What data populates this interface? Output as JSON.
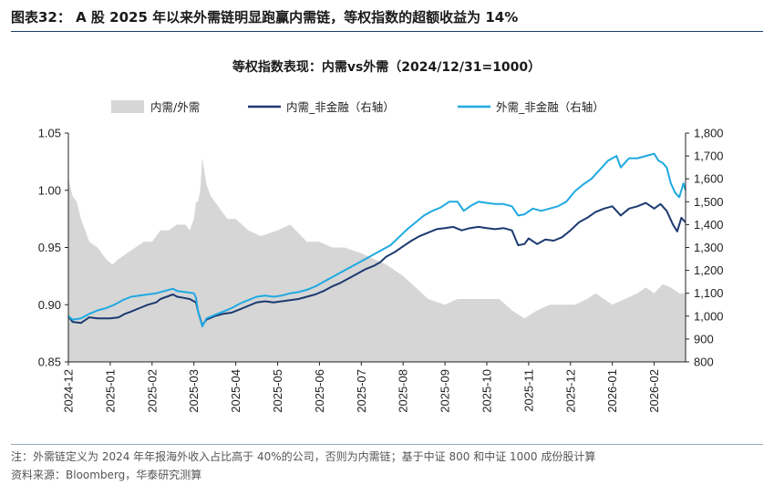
{
  "figure": {
    "title": "图表32： A 股 2025 年以来外需链明显跑赢内需链，等权指数的超额收益为 14%",
    "note": "注：外需链定义为 2024 年年报海外收入占比高于 40%的公司，否则为内需链；基于中证 800 和中证 1000 成份股计算",
    "source": "资料来源：Bloomberg，华泰研究测算"
  },
  "colors": {
    "area": "#d6d6d6",
    "domestic": "#1c3a70",
    "foreign": "#1fa9e1",
    "axis": "#222222"
  },
  "chart_data": {
    "type": "line",
    "title": "等权指数表现：内需vs外需（2024/12/31=1000）",
    "xlabel": "",
    "ylabel": "",
    "x_ticks": [
      "2024-12",
      "2025-01",
      "2025-02",
      "2025-03",
      "2025-04",
      "2025-05",
      "2025-06",
      "2025-07",
      "2025-08",
      "2025-09",
      "2025-10",
      "2025-11",
      "2025-12",
      "2026-01",
      "2026-02"
    ],
    "x_range": [
      0,
      14.75
    ],
    "y_left": {
      "ticks": [
        "0.85",
        "0.90",
        "0.95",
        "1.00",
        "1.05"
      ],
      "range": [
        0.85,
        1.05
      ]
    },
    "y_right": {
      "ticks": [
        "800",
        "900",
        "1,000",
        "1,100",
        "1,200",
        "1,300",
        "1,400",
        "1,500",
        "1,600",
        "1,700",
        "1,800"
      ],
      "range": [
        800,
        1800
      ]
    },
    "legend": [
      "内需/外需",
      "内需_非金融（右轴）",
      "外需_非金融（右轴）"
    ],
    "series": [
      {
        "name": "内需/外需",
        "kind": "area",
        "axis": "left",
        "points": [
          [
            0,
            1.01
          ],
          [
            0.1,
            0.995
          ],
          [
            0.2,
            0.99
          ],
          [
            0.3,
            0.975
          ],
          [
            0.5,
            0.955
          ],
          [
            0.7,
            0.95
          ],
          [
            0.9,
            0.94
          ],
          [
            1.05,
            0.935
          ],
          [
            1.2,
            0.94
          ],
          [
            1.4,
            0.945
          ],
          [
            1.6,
            0.95
          ],
          [
            1.8,
            0.955
          ],
          [
            2.0,
            0.955
          ],
          [
            2.2,
            0.965
          ],
          [
            2.4,
            0.965
          ],
          [
            2.6,
            0.97
          ],
          [
            2.8,
            0.97
          ],
          [
            2.9,
            0.965
          ],
          [
            3.0,
            0.975
          ],
          [
            3.05,
            0.99
          ],
          [
            3.1,
            0.99
          ],
          [
            3.15,
            1.0
          ],
          [
            3.2,
            1.028
          ],
          [
            3.3,
            1.005
          ],
          [
            3.4,
            0.995
          ],
          [
            3.6,
            0.985
          ],
          [
            3.8,
            0.975
          ],
          [
            4.0,
            0.975
          ],
          [
            4.3,
            0.965
          ],
          [
            4.6,
            0.96
          ],
          [
            5.0,
            0.965
          ],
          [
            5.3,
            0.97
          ],
          [
            5.7,
            0.955
          ],
          [
            6.0,
            0.955
          ],
          [
            6.3,
            0.95
          ],
          [
            6.6,
            0.95
          ],
          [
            7.0,
            0.945
          ],
          [
            7.3,
            0.94
          ],
          [
            7.6,
            0.935
          ],
          [
            8.0,
            0.925
          ],
          [
            8.3,
            0.915
          ],
          [
            8.6,
            0.905
          ],
          [
            9.0,
            0.9
          ],
          [
            9.3,
            0.905
          ],
          [
            9.6,
            0.905
          ],
          [
            10.0,
            0.905
          ],
          [
            10.3,
            0.905
          ],
          [
            10.6,
            0.895
          ],
          [
            10.9,
            0.888
          ],
          [
            11.2,
            0.895
          ],
          [
            11.5,
            0.9
          ],
          [
            11.8,
            0.9
          ],
          [
            12.1,
            0.9
          ],
          [
            12.4,
            0.905
          ],
          [
            12.6,
            0.91
          ],
          [
            12.8,
            0.905
          ],
          [
            13.0,
            0.9
          ],
          [
            13.3,
            0.905
          ],
          [
            13.6,
            0.91
          ],
          [
            13.8,
            0.915
          ],
          [
            14.0,
            0.91
          ],
          [
            14.2,
            0.918
          ],
          [
            14.4,
            0.915
          ],
          [
            14.6,
            0.91
          ],
          [
            14.75,
            0.91
          ]
        ]
      },
      {
        "name": "内需_非金融（右轴）",
        "kind": "line",
        "axis": "right",
        "points": [
          [
            0,
            1000
          ],
          [
            0.1,
            975
          ],
          [
            0.3,
            970
          ],
          [
            0.5,
            995
          ],
          [
            0.7,
            990
          ],
          [
            0.9,
            990
          ],
          [
            1.0,
            990
          ],
          [
            1.2,
            995
          ],
          [
            1.35,
            1010
          ],
          [
            1.5,
            1020
          ],
          [
            1.7,
            1035
          ],
          [
            1.9,
            1050
          ],
          [
            2.1,
            1060
          ],
          [
            2.2,
            1075
          ],
          [
            2.35,
            1085
          ],
          [
            2.5,
            1095
          ],
          [
            2.6,
            1085
          ],
          [
            2.75,
            1080
          ],
          [
            2.9,
            1075
          ],
          [
            3.0,
            1065
          ],
          [
            3.05,
            1060
          ],
          [
            3.1,
            1020
          ],
          [
            3.2,
            960
          ],
          [
            3.3,
            985
          ],
          [
            3.5,
            1000
          ],
          [
            3.7,
            1010
          ],
          [
            3.9,
            1015
          ],
          [
            4.1,
            1030
          ],
          [
            4.3,
            1045
          ],
          [
            4.5,
            1060
          ],
          [
            4.7,
            1065
          ],
          [
            4.9,
            1060
          ],
          [
            5.1,
            1065
          ],
          [
            5.3,
            1070
          ],
          [
            5.5,
            1075
          ],
          [
            5.7,
            1085
          ],
          [
            5.9,
            1095
          ],
          [
            6.1,
            1110
          ],
          [
            6.3,
            1130
          ],
          [
            6.5,
            1145
          ],
          [
            6.7,
            1165
          ],
          [
            6.9,
            1185
          ],
          [
            7.1,
            1205
          ],
          [
            7.3,
            1220
          ],
          [
            7.45,
            1235
          ],
          [
            7.6,
            1260
          ],
          [
            7.8,
            1280
          ],
          [
            8.0,
            1305
          ],
          [
            8.2,
            1330
          ],
          [
            8.4,
            1350
          ],
          [
            8.6,
            1365
          ],
          [
            8.8,
            1380
          ],
          [
            9.0,
            1385
          ],
          [
            9.2,
            1390
          ],
          [
            9.4,
            1375
          ],
          [
            9.6,
            1385
          ],
          [
            9.8,
            1390
          ],
          [
            10.0,
            1385
          ],
          [
            10.2,
            1380
          ],
          [
            10.4,
            1385
          ],
          [
            10.6,
            1375
          ],
          [
            10.75,
            1310
          ],
          [
            10.9,
            1315
          ],
          [
            11.0,
            1340
          ],
          [
            11.2,
            1315
          ],
          [
            11.4,
            1335
          ],
          [
            11.6,
            1330
          ],
          [
            11.8,
            1345
          ],
          [
            12.0,
            1375
          ],
          [
            12.2,
            1410
          ],
          [
            12.4,
            1430
          ],
          [
            12.6,
            1455
          ],
          [
            12.8,
            1470
          ],
          [
            13.0,
            1480
          ],
          [
            13.2,
            1440
          ],
          [
            13.4,
            1470
          ],
          [
            13.6,
            1480
          ],
          [
            13.8,
            1495
          ],
          [
            14.0,
            1470
          ],
          [
            14.15,
            1490
          ],
          [
            14.3,
            1460
          ],
          [
            14.45,
            1400
          ],
          [
            14.55,
            1370
          ],
          [
            14.65,
            1430
          ],
          [
            14.75,
            1410
          ]
        ]
      },
      {
        "name": "外需_非金融（右轴）",
        "kind": "line",
        "axis": "right",
        "points": [
          [
            0,
            1000
          ],
          [
            0.1,
            985
          ],
          [
            0.3,
            990
          ],
          [
            0.5,
            1010
          ],
          [
            0.7,
            1025
          ],
          [
            0.9,
            1035
          ],
          [
            1.1,
            1050
          ],
          [
            1.3,
            1070
          ],
          [
            1.5,
            1085
          ],
          [
            1.7,
            1090
          ],
          [
            1.9,
            1095
          ],
          [
            2.1,
            1100
          ],
          [
            2.3,
            1110
          ],
          [
            2.5,
            1120
          ],
          [
            2.6,
            1110
          ],
          [
            2.8,
            1105
          ],
          [
            3.0,
            1100
          ],
          [
            3.05,
            1080
          ],
          [
            3.1,
            1020
          ],
          [
            3.2,
            955
          ],
          [
            3.3,
            990
          ],
          [
            3.5,
            1005
          ],
          [
            3.7,
            1020
          ],
          [
            3.9,
            1035
          ],
          [
            4.1,
            1055
          ],
          [
            4.3,
            1070
          ],
          [
            4.5,
            1085
          ],
          [
            4.7,
            1090
          ],
          [
            4.9,
            1085
          ],
          [
            5.1,
            1090
          ],
          [
            5.3,
            1100
          ],
          [
            5.5,
            1105
          ],
          [
            5.7,
            1115
          ],
          [
            5.9,
            1130
          ],
          [
            6.1,
            1150
          ],
          [
            6.3,
            1170
          ],
          [
            6.5,
            1190
          ],
          [
            6.7,
            1210
          ],
          [
            6.9,
            1230
          ],
          [
            7.1,
            1250
          ],
          [
            7.3,
            1270
          ],
          [
            7.5,
            1290
          ],
          [
            7.7,
            1310
          ],
          [
            7.9,
            1345
          ],
          [
            8.1,
            1380
          ],
          [
            8.3,
            1410
          ],
          [
            8.5,
            1440
          ],
          [
            8.7,
            1460
          ],
          [
            8.9,
            1475
          ],
          [
            9.1,
            1500
          ],
          [
            9.3,
            1500
          ],
          [
            9.45,
            1460
          ],
          [
            9.6,
            1480
          ],
          [
            9.8,
            1500
          ],
          [
            10.0,
            1495
          ],
          [
            10.2,
            1490
          ],
          [
            10.4,
            1490
          ],
          [
            10.6,
            1480
          ],
          [
            10.75,
            1440
          ],
          [
            10.9,
            1445
          ],
          [
            11.1,
            1470
          ],
          [
            11.3,
            1460
          ],
          [
            11.5,
            1470
          ],
          [
            11.7,
            1480
          ],
          [
            11.9,
            1500
          ],
          [
            12.1,
            1545
          ],
          [
            12.3,
            1575
          ],
          [
            12.5,
            1600
          ],
          [
            12.7,
            1640
          ],
          [
            12.9,
            1680
          ],
          [
            13.1,
            1700
          ],
          [
            13.2,
            1650
          ],
          [
            13.4,
            1690
          ],
          [
            13.6,
            1690
          ],
          [
            13.8,
            1700
          ],
          [
            14.0,
            1710
          ],
          [
            14.1,
            1680
          ],
          [
            14.2,
            1670
          ],
          [
            14.3,
            1650
          ],
          [
            14.4,
            1580
          ],
          [
            14.5,
            1540
          ],
          [
            14.6,
            1520
          ],
          [
            14.7,
            1580
          ],
          [
            14.75,
            1550
          ]
        ]
      }
    ]
  }
}
